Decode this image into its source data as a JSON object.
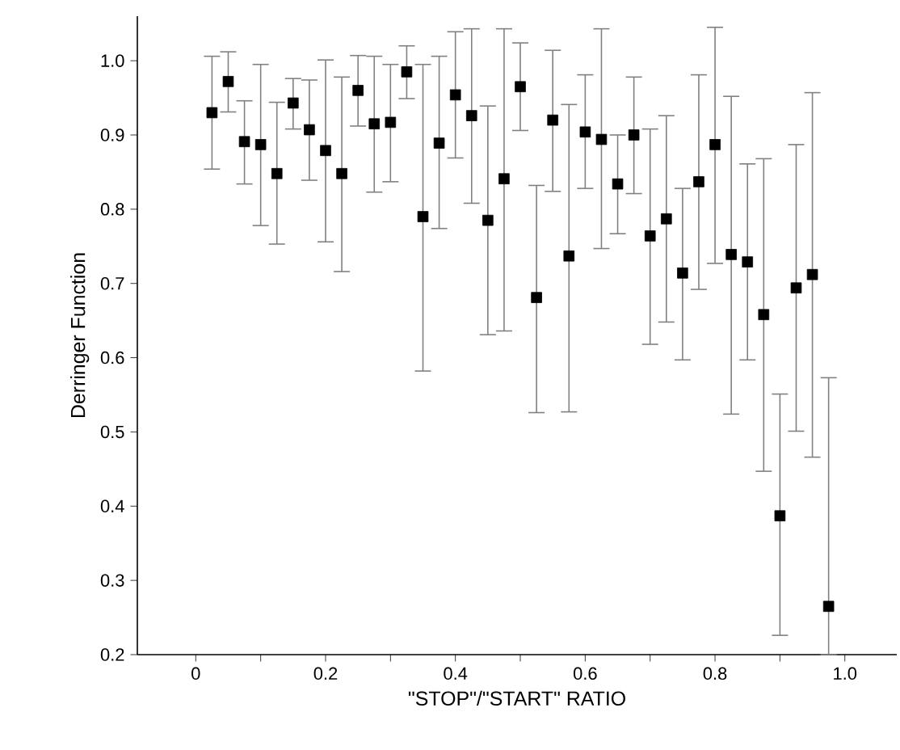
{
  "chart_data": {
    "type": "scatter",
    "xlabel": "\"STOP\"/\"START\" RATIO",
    "ylabel": "Derringer Function",
    "marker": "square",
    "xlim": [
      -0.09,
      1.08
    ],
    "ylim": [
      0.2,
      1.06
    ],
    "xticks": [
      0,
      {
        "value": 0.1,
        "label": null
      },
      0.2,
      {
        "value": 0.3,
        "label": null
      },
      0.4,
      {
        "value": 0.5,
        "label": null
      },
      0.6,
      {
        "value": 0.7,
        "label": null
      },
      0.8,
      {
        "value": 0.9,
        "label": null
      },
      {
        "value": 1.0,
        "label": "1.0"
      }
    ],
    "yticks": [
      0.2,
      0.3,
      0.4,
      0.5,
      0.6,
      0.7,
      0.8,
      0.9,
      {
        "value": 1.0,
        "label": "1.0"
      }
    ],
    "series": [
      {
        "color": "#000000",
        "x": [
          0.025,
          0.05,
          0.075,
          0.1,
          0.125,
          0.15,
          0.175,
          0.2,
          0.225,
          0.25,
          0.275,
          0.3,
          0.325,
          0.35,
          0.375,
          0.4,
          0.425,
          0.45,
          0.475,
          0.5,
          0.525,
          0.55,
          0.575,
          0.6,
          0.625,
          0.65,
          0.675,
          0.7,
          0.725,
          0.75,
          0.775,
          0.8,
          0.825,
          0.85,
          0.875,
          0.9,
          0.925,
          0.95,
          0.975
        ],
        "values": [
          0.93,
          0.972,
          0.891,
          0.887,
          0.848,
          0.943,
          0.907,
          0.879,
          0.848,
          0.96,
          0.915,
          0.917,
          0.985,
          0.79,
          0.889,
          0.954,
          0.926,
          0.785,
          0.841,
          0.965,
          0.681,
          0.92,
          0.737,
          0.904,
          0.894,
          0.834,
          0.9,
          0.764,
          0.787,
          0.714,
          0.837,
          0.887,
          0.739,
          0.729,
          0.658,
          0.387,
          0.694,
          0.712,
          0.265
        ],
        "errors": [
          [
            0.854,
            1.006
          ],
          [
            0.931,
            1.012
          ],
          [
            0.834,
            0.946
          ],
          [
            0.778,
            0.995
          ],
          [
            0.753,
            0.944
          ],
          [
            0.908,
            0.976
          ],
          [
            0.839,
            0.974
          ],
          [
            0.756,
            1.001
          ],
          [
            0.716,
            0.978
          ],
          [
            0.912,
            1.007
          ],
          [
            0.823,
            1.006
          ],
          [
            0.837,
            0.995
          ],
          [
            0.949,
            1.02
          ],
          [
            0.582,
            0.995
          ],
          [
            0.774,
            1.006
          ],
          [
            0.869,
            1.039
          ],
          [
            0.808,
            1.043
          ],
          [
            0.631,
            0.939
          ],
          [
            0.636,
            1.043
          ],
          [
            0.906,
            1.024
          ],
          [
            0.526,
            0.832
          ],
          [
            0.824,
            1.014
          ],
          [
            0.527,
            0.941
          ],
          [
            0.828,
            0.981
          ],
          [
            0.747,
            1.043
          ],
          [
            0.767,
            0.9
          ],
          [
            0.821,
            0.978
          ],
          [
            0.618,
            0.908
          ],
          [
            0.648,
            0.926
          ],
          [
            0.597,
            0.828
          ],
          [
            0.692,
            0.981
          ],
          [
            0.727,
            1.045
          ],
          [
            0.524,
            0.952
          ],
          [
            0.597,
            0.861
          ],
          [
            0.447,
            0.868
          ],
          [
            0.226,
            0.551
          ],
          [
            0.501,
            0.887
          ],
          [
            0.466,
            0.957
          ],
          [
            0.2,
            0.573
          ]
        ]
      }
    ]
  }
}
